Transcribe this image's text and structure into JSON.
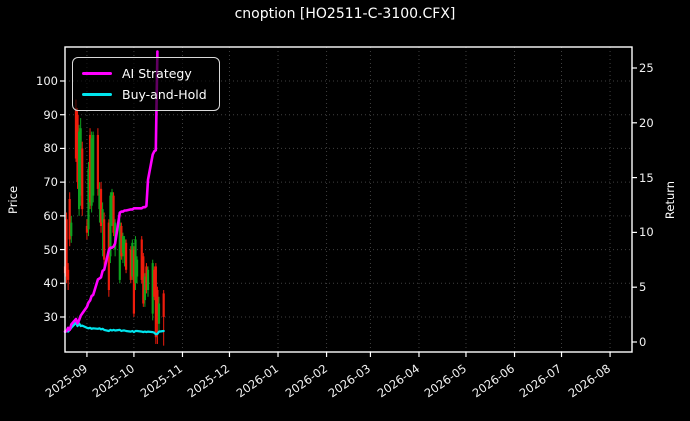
{
  "header": {
    "title": "cnoption [HO2511-C-3100.CFX]"
  },
  "legend": {
    "items": [
      {
        "label": "AI Strategy",
        "color": "#ff00ff"
      },
      {
        "label": "Buy-and-Hold",
        "color": "#00e5ee"
      }
    ]
  },
  "colors": {
    "background": "#000000",
    "spine": "#ffffff",
    "grid": "#414141",
    "tick_text": "#f2f2f2",
    "candle_up": "#0ca21e",
    "candle_down": "#ef1c0c",
    "ai_strategy": "#ff00ff",
    "buy_and_hold": "#00e5ee"
  },
  "chart_data": {
    "type": "candlestick+line",
    "title": "cnoption [HO2511-C-3100.CFX]",
    "grid": true,
    "legend_position": "upper left",
    "left_axis": {
      "label": "Price",
      "ticks": [
        30,
        40,
        50,
        60,
        70,
        80,
        90,
        100
      ],
      "range": [
        19.6,
        110.5
      ]
    },
    "right_axis": {
      "label": "Return",
      "ticks": [
        0,
        5,
        10,
        15,
        20,
        25
      ],
      "range": [
        -0.9,
        27.8
      ]
    },
    "x_axis": {
      "epoch": "2025-08-18",
      "range": [
        "2025-08-18",
        "2026-08-15"
      ],
      "ticks": [
        {
          "label": "2025-09",
          "date": "2025-09-01"
        },
        {
          "label": "2025-10",
          "date": "2025-10-01"
        },
        {
          "label": "2025-11",
          "date": "2025-11-01"
        },
        {
          "label": "2025-12",
          "date": "2025-12-01"
        },
        {
          "label": "2026-01",
          "date": "2026-01-01"
        },
        {
          "label": "2026-02",
          "date": "2026-02-01"
        },
        {
          "label": "2026-03",
          "date": "2026-03-01"
        },
        {
          "label": "2026-04",
          "date": "2026-04-01"
        },
        {
          "label": "2026-05",
          "date": "2026-05-01"
        },
        {
          "label": "2026-06",
          "date": "2026-06-01"
        },
        {
          "label": "2026-07",
          "date": "2026-07-01"
        },
        {
          "label": "2026-08",
          "date": "2026-08-01"
        }
      ]
    },
    "candles": {
      "axis": "left",
      "up_color": "#0ca21e",
      "down_color": "#ef1c0c",
      "columns": [
        "date",
        "open",
        "high",
        "low",
        "close"
      ],
      "rows": [
        [
          "2025-08-18",
          45,
          48,
          41,
          43
        ],
        [
          "2025-08-19",
          59,
          61,
          40,
          42
        ],
        [
          "2025-08-20",
          44,
          46,
          38,
          41
        ],
        [
          "2025-08-21",
          65,
          67,
          51,
          53
        ],
        [
          "2025-08-22",
          54,
          60,
          52,
          58
        ],
        [
          "2025-08-25",
          92,
          94.5,
          76,
          77
        ],
        [
          "2025-08-26",
          90,
          92,
          68,
          70
        ],
        [
          "2025-08-27",
          62,
          87,
          60,
          85
        ],
        [
          "2025-08-28",
          66,
          89,
          63,
          86
        ],
        [
          "2025-08-29",
          80,
          82,
          60,
          62
        ],
        [
          "2025-09-01",
          57,
          59,
          53,
          55
        ],
        [
          "2025-09-02",
          56,
          76,
          54,
          74
        ],
        [
          "2025-09-03",
          84,
          86,
          62,
          64
        ],
        [
          "2025-09-04",
          63,
          85,
          61,
          83
        ],
        [
          "2025-09-05",
          66,
          85,
          64,
          84
        ],
        [
          "2025-09-08",
          84,
          86,
          66,
          68
        ],
        [
          "2025-09-09",
          62,
          70,
          58,
          68
        ],
        [
          "2025-09-10",
          68,
          70,
          55,
          57
        ],
        [
          "2025-09-11",
          58,
          64,
          48,
          62
        ],
        [
          "2025-09-12",
          59,
          61,
          45,
          47
        ],
        [
          "2025-09-15",
          58,
          59,
          36,
          38
        ],
        [
          "2025-09-16",
          48,
          67,
          46,
          66
        ],
        [
          "2025-09-17",
          60,
          68,
          57,
          67
        ],
        [
          "2025-09-18",
          66,
          67,
          54,
          55
        ],
        [
          "2025-09-19",
          50,
          59,
          48,
          58
        ],
        [
          "2025-09-22",
          41,
          59,
          40,
          58
        ],
        [
          "2025-09-23",
          57,
          58,
          47,
          48
        ],
        [
          "2025-09-24",
          49,
          55,
          46,
          54
        ],
        [
          "2025-09-25",
          48,
          54,
          45,
          53
        ],
        [
          "2025-09-26",
          52,
          53,
          43,
          44
        ],
        [
          "2025-09-29",
          50,
          51,
          40,
          41
        ],
        [
          "2025-09-30",
          42,
          53,
          41,
          52
        ],
        [
          "2025-10-01",
          50,
          51,
          30,
          31
        ],
        [
          "2025-10-02",
          40,
          54,
          38,
          53
        ],
        [
          "2025-10-03",
          42,
          48,
          40,
          47
        ],
        [
          "2025-10-06",
          53,
          54,
          40,
          41
        ],
        [
          "2025-10-07",
          48,
          49,
          33,
          34
        ],
        [
          "2025-10-08",
          35,
          43,
          33,
          42
        ],
        [
          "2025-10-09",
          45,
          46,
          37,
          38
        ],
        [
          "2025-10-10",
          38,
          45,
          36,
          44
        ],
        [
          "2025-10-13",
          31,
          47,
          29,
          46
        ],
        [
          "2025-10-14",
          44,
          45,
          35,
          36
        ],
        [
          "2025-10-15",
          45,
          46,
          22,
          24
        ],
        [
          "2025-10-16",
          38,
          39,
          22,
          28
        ],
        [
          "2025-10-17",
          28,
          36,
          26,
          34
        ],
        [
          "2025-10-20",
          37,
          38,
          21.5,
          30
        ]
      ]
    },
    "series": [
      {
        "name": "AI Strategy",
        "color": "#ff00ff",
        "axis": "right",
        "line_width": 2.6,
        "points": [
          [
            "2025-08-18",
            0.95
          ],
          [
            "2025-08-19",
            1.0
          ],
          [
            "2025-08-20",
            1.3
          ],
          [
            "2025-08-21",
            1.1
          ],
          [
            "2025-08-22",
            1.6
          ],
          [
            "2025-08-25",
            2.1
          ],
          [
            "2025-08-26",
            1.7
          ],
          [
            "2025-08-27",
            2.0
          ],
          [
            "2025-08-28",
            2.4
          ],
          [
            "2025-08-29",
            2.6
          ],
          [
            "2025-09-01",
            3.2
          ],
          [
            "2025-09-02",
            3.6
          ],
          [
            "2025-09-03",
            3.8
          ],
          [
            "2025-09-04",
            4.2
          ],
          [
            "2025-09-05",
            4.3
          ],
          [
            "2025-09-08",
            5.7
          ],
          [
            "2025-09-09",
            5.8
          ],
          [
            "2025-09-10",
            5.9
          ],
          [
            "2025-09-11",
            6.5
          ],
          [
            "2025-09-12",
            6.6
          ],
          [
            "2025-09-15",
            8.4
          ],
          [
            "2025-09-16",
            8.6
          ],
          [
            "2025-09-17",
            8.6
          ],
          [
            "2025-09-18",
            8.7
          ],
          [
            "2025-09-19",
            9.0
          ],
          [
            "2025-09-22",
            11.8
          ],
          [
            "2025-09-23",
            11.9
          ],
          [
            "2025-09-24",
            11.9
          ],
          [
            "2025-09-25",
            12.0
          ],
          [
            "2025-09-26",
            12.0
          ],
          [
            "2025-09-29",
            12.1
          ],
          [
            "2025-09-30",
            12.1
          ],
          [
            "2025-10-01",
            12.2
          ],
          [
            "2025-10-02",
            12.2
          ],
          [
            "2025-10-03",
            12.2
          ],
          [
            "2025-10-06",
            12.2
          ],
          [
            "2025-10-07",
            12.3
          ],
          [
            "2025-10-08",
            12.3
          ],
          [
            "2025-10-09",
            12.4
          ],
          [
            "2025-10-10",
            14.8
          ],
          [
            "2025-10-13",
            17.1
          ],
          [
            "2025-10-14",
            17.4
          ],
          [
            "2025-10-15",
            17.5
          ],
          [
            "2025-10-16",
            26.5
          ]
        ]
      },
      {
        "name": "Buy-and-Hold",
        "color": "#00e5ee",
        "axis": "right",
        "line_width": 2.2,
        "points": [
          [
            "2025-08-18",
            0.9
          ],
          [
            "2025-08-19",
            1.0
          ],
          [
            "2025-08-20",
            0.95
          ],
          [
            "2025-08-21",
            1.1
          ],
          [
            "2025-08-22",
            1.3
          ],
          [
            "2025-08-25",
            1.75
          ],
          [
            "2025-08-26",
            1.45
          ],
          [
            "2025-08-27",
            1.7
          ],
          [
            "2025-08-28",
            1.45
          ],
          [
            "2025-08-29",
            1.5
          ],
          [
            "2025-09-01",
            1.3
          ],
          [
            "2025-09-02",
            1.25
          ],
          [
            "2025-09-03",
            1.3
          ],
          [
            "2025-09-04",
            1.2
          ],
          [
            "2025-09-05",
            1.25
          ],
          [
            "2025-09-08",
            1.2
          ],
          [
            "2025-09-09",
            1.25
          ],
          [
            "2025-09-10",
            1.15
          ],
          [
            "2025-09-11",
            1.2
          ],
          [
            "2025-09-12",
            1.1
          ],
          [
            "2025-09-15",
            1.0
          ],
          [
            "2025-09-16",
            1.1
          ],
          [
            "2025-09-17",
            1.05
          ],
          [
            "2025-09-18",
            1.1
          ],
          [
            "2025-09-19",
            1.05
          ],
          [
            "2025-09-22",
            1.1
          ],
          [
            "2025-09-23",
            1.0
          ],
          [
            "2025-09-24",
            1.05
          ],
          [
            "2025-09-25",
            1.05
          ],
          [
            "2025-09-26",
            1.0
          ],
          [
            "2025-09-29",
            0.95
          ],
          [
            "2025-09-30",
            1.0
          ],
          [
            "2025-10-01",
            0.9
          ],
          [
            "2025-10-02",
            1.0
          ],
          [
            "2025-10-03",
            1.0
          ],
          [
            "2025-10-06",
            0.95
          ],
          [
            "2025-10-07",
            0.9
          ],
          [
            "2025-10-08",
            0.95
          ],
          [
            "2025-10-09",
            0.9
          ],
          [
            "2025-10-10",
            0.95
          ],
          [
            "2025-10-13",
            0.9
          ],
          [
            "2025-10-14",
            0.85
          ],
          [
            "2025-10-15",
            0.7
          ],
          [
            "2025-10-16",
            0.75
          ],
          [
            "2025-10-17",
            0.95
          ],
          [
            "2025-10-20",
            1.0
          ]
        ]
      }
    ]
  }
}
